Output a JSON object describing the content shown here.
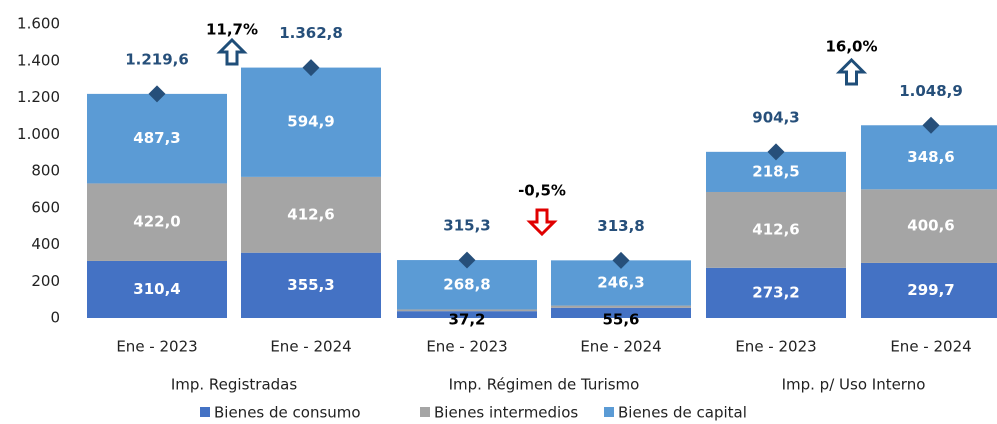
{
  "chart_data": {
    "type": "stacked_bar",
    "categories": [
      "Ene - 2023",
      "Ene - 2024",
      "Ene - 2023",
      "Ene - 2024",
      "Ene - 2023",
      "Ene - 2024"
    ],
    "groups": [
      "Imp. Registradas",
      "Imp. Régimen de Turismo",
      "Imp. p/ Uso Interno"
    ],
    "series": [
      {
        "name": "Bienes de consumo",
        "color": "#4472c4",
        "values": [
          310.4,
          355.3,
          37.2,
          55.6,
          273.2,
          299.7
        ],
        "value_labels": [
          "310,4",
          "355,3",
          "37,2",
          "55,6",
          "273,2",
          "299,7"
        ]
      },
      {
        "name": "Bienes intermedios",
        "color": "#a5a5a5",
        "values": [
          422.0,
          412.6,
          9.3,
          11.9,
          412.6,
          400.6
        ],
        "value_labels": [
          "422,0",
          "412,6",
          null,
          null,
          "412,6",
          "400,6"
        ]
      },
      {
        "name": "Bienes de capital",
        "color": "#5b9bd5",
        "values": [
          487.3,
          594.9,
          268.8,
          246.3,
          218.5,
          348.6
        ],
        "value_labels": [
          "487,3",
          "594,9",
          "268,8",
          "246,3",
          "218,5",
          "348,6"
        ]
      }
    ],
    "totals": [
      1219.6,
      1362.8,
      315.3,
      313.8,
      904.3,
      1048.9
    ],
    "totals_labels": [
      "1.219,6",
      "1.362,8",
      "315,3",
      "313,8",
      "904,3",
      "1.048,9"
    ],
    "totals_color": "#264f7a",
    "annotations": [
      {
        "text": "11,7%",
        "direction": "up",
        "color": "#1f4e79"
      },
      {
        "text": "-0,5%",
        "direction": "down",
        "color": "#e00000"
      },
      {
        "text": "16,0%",
        "direction": "up",
        "color": "#1f4e79"
      }
    ],
    "ylim": [
      0,
      1600
    ],
    "yticks": [
      0,
      200,
      400,
      600,
      800,
      {
        "value": 1000,
        "label": "1.000"
      },
      {
        "value": 1200,
        "label": "1.200"
      },
      {
        "value": 1400,
        "label": "1.400"
      },
      {
        "value": 1600,
        "label": "1.600"
      }
    ],
    "grid": false,
    "legend": "bottom"
  }
}
